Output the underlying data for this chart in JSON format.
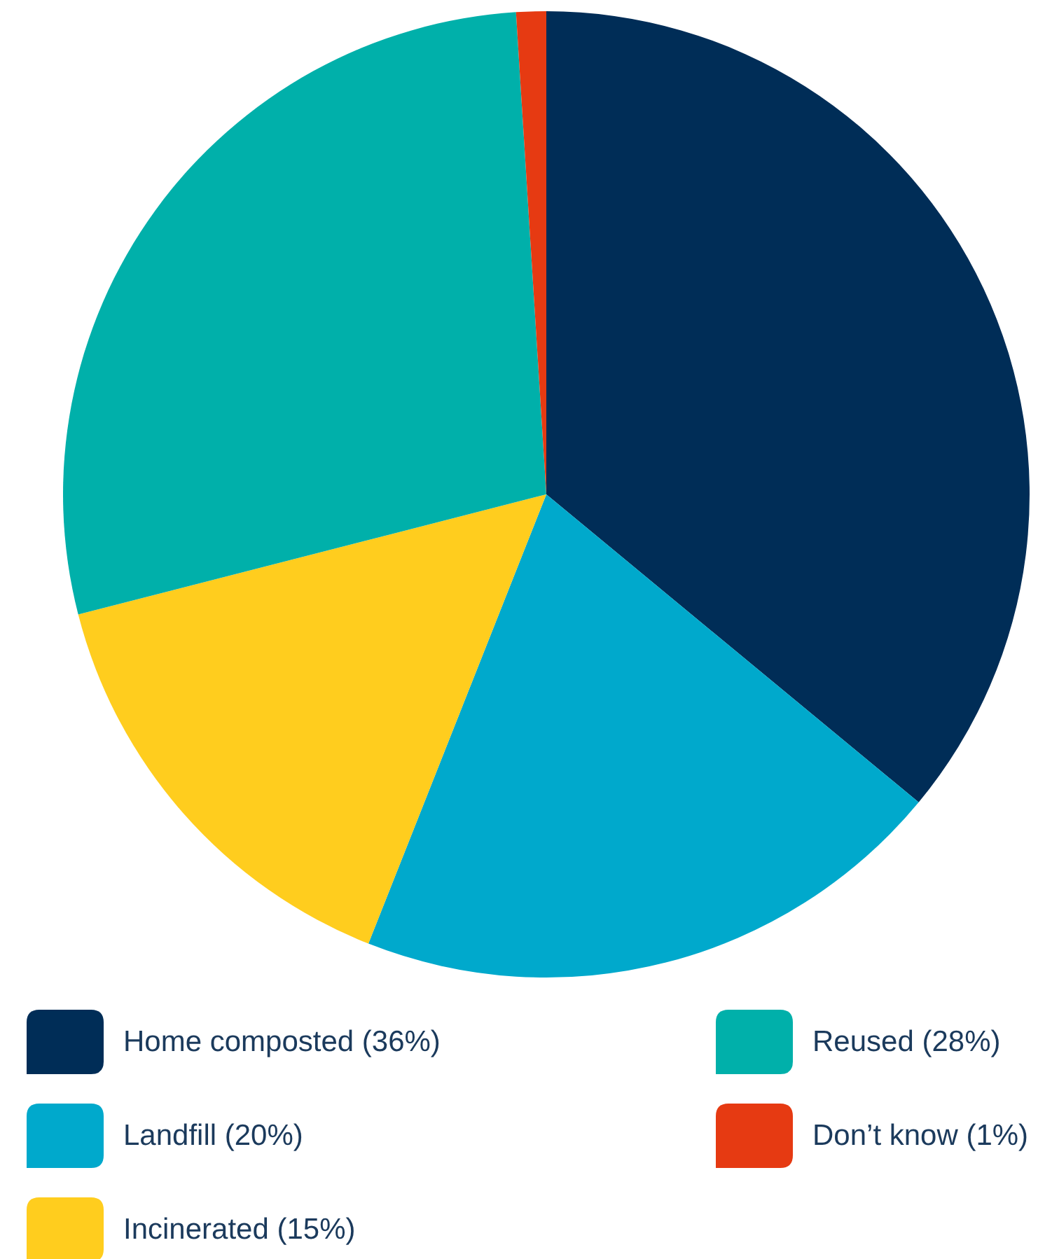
{
  "chart_data": {
    "type": "pie",
    "categories": [
      "Home composted (36%)",
      "Landfill (20%)",
      "Incinerated (15%)",
      "Reused (28%)",
      "Don’t know (1%)"
    ],
    "values": [
      36,
      20,
      15,
      28,
      1
    ],
    "colors": [
      "#002d57",
      "#00a9cc",
      "#ffcd1e",
      "#00b0aa",
      "#e63a12"
    ],
    "legend": "bottom"
  }
}
